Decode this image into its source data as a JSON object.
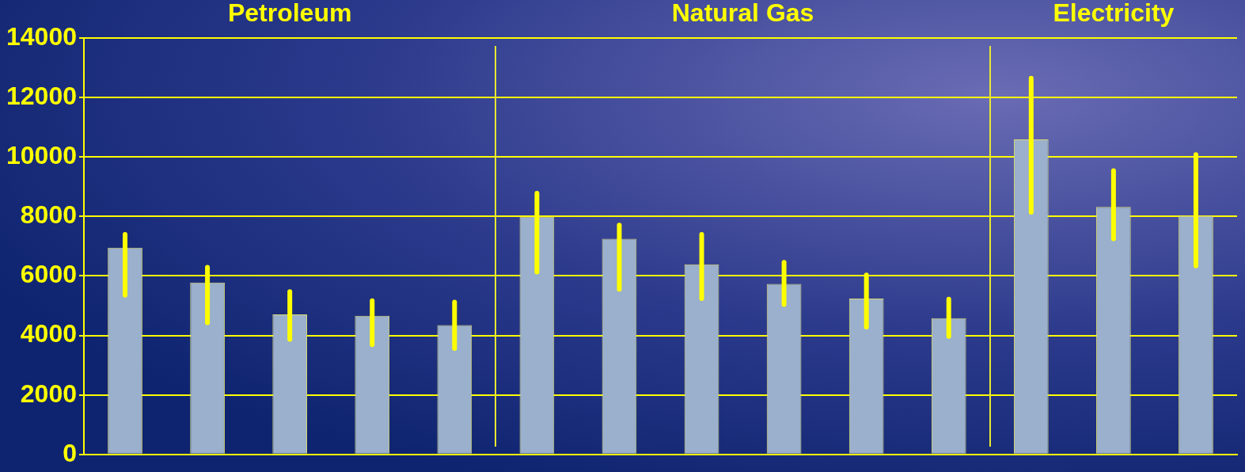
{
  "chart_data": {
    "type": "bar",
    "categories": [
      null,
      null,
      null,
      null,
      null,
      null,
      null,
      null,
      null,
      null,
      null,
      null,
      null,
      null
    ],
    "values": [
      6950,
      5780,
      4710,
      4660,
      4350,
      7990,
      7250,
      6390,
      5730,
      5240,
      4580,
      10590,
      8320,
      8020
    ],
    "errors": [
      [
        5350,
        7400
      ],
      [
        4430,
        6290
      ],
      [
        3870,
        5470
      ],
      [
        3690,
        5170
      ],
      [
        3560,
        5120
      ],
      [
        6130,
        8780
      ],
      [
        5550,
        7710
      ],
      [
        5240,
        7400
      ],
      [
        5040,
        6460
      ],
      [
        4280,
        6030
      ],
      [
        3970,
        5220
      ],
      [
        8140,
        12650
      ],
      [
        7250,
        9540
      ],
      [
        6340,
        10080
      ]
    ],
    "color": "#9ab0cc",
    "ylim": [
      0,
      14000
    ],
    "yticks": [
      0,
      2000,
      4000,
      6000,
      8000,
      10000,
      12000,
      14000
    ],
    "grid": "y",
    "legend": false,
    "annotations": [
      "Petroleum",
      "Natural Gas",
      "Electricity"
    ]
  }
}
